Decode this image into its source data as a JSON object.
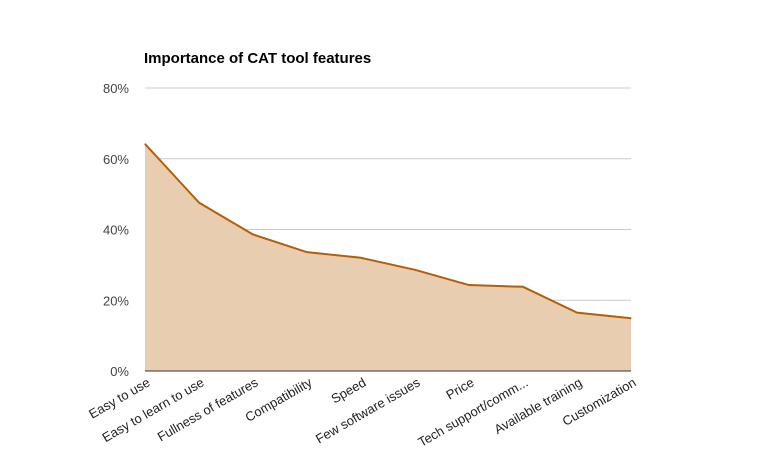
{
  "chart_data": {
    "type": "area",
    "title": "Importance of CAT tool features",
    "xlabel": "",
    "ylabel": "",
    "categories": [
      "Easy to use",
      "Easy to learn to use",
      "Fullness of features",
      "Compatibility",
      "Speed",
      "Few software issues",
      "Price",
      "Tech support/comm...",
      "Available training",
      "Customization"
    ],
    "values": [
      64.2,
      47.6,
      38.6,
      33.6,
      32.0,
      28.6,
      24.3,
      23.8,
      16.5,
      14.9
    ],
    "ylim": [
      0,
      80
    ],
    "yticks": [
      "0%",
      "20%",
      "40%",
      "60%",
      "80%"
    ],
    "grid": true,
    "legend": "none",
    "colors": {
      "line": "#b45f06",
      "fill": "#e8cdb0",
      "grid": "#cccccc",
      "baseline": "#333333"
    }
  }
}
